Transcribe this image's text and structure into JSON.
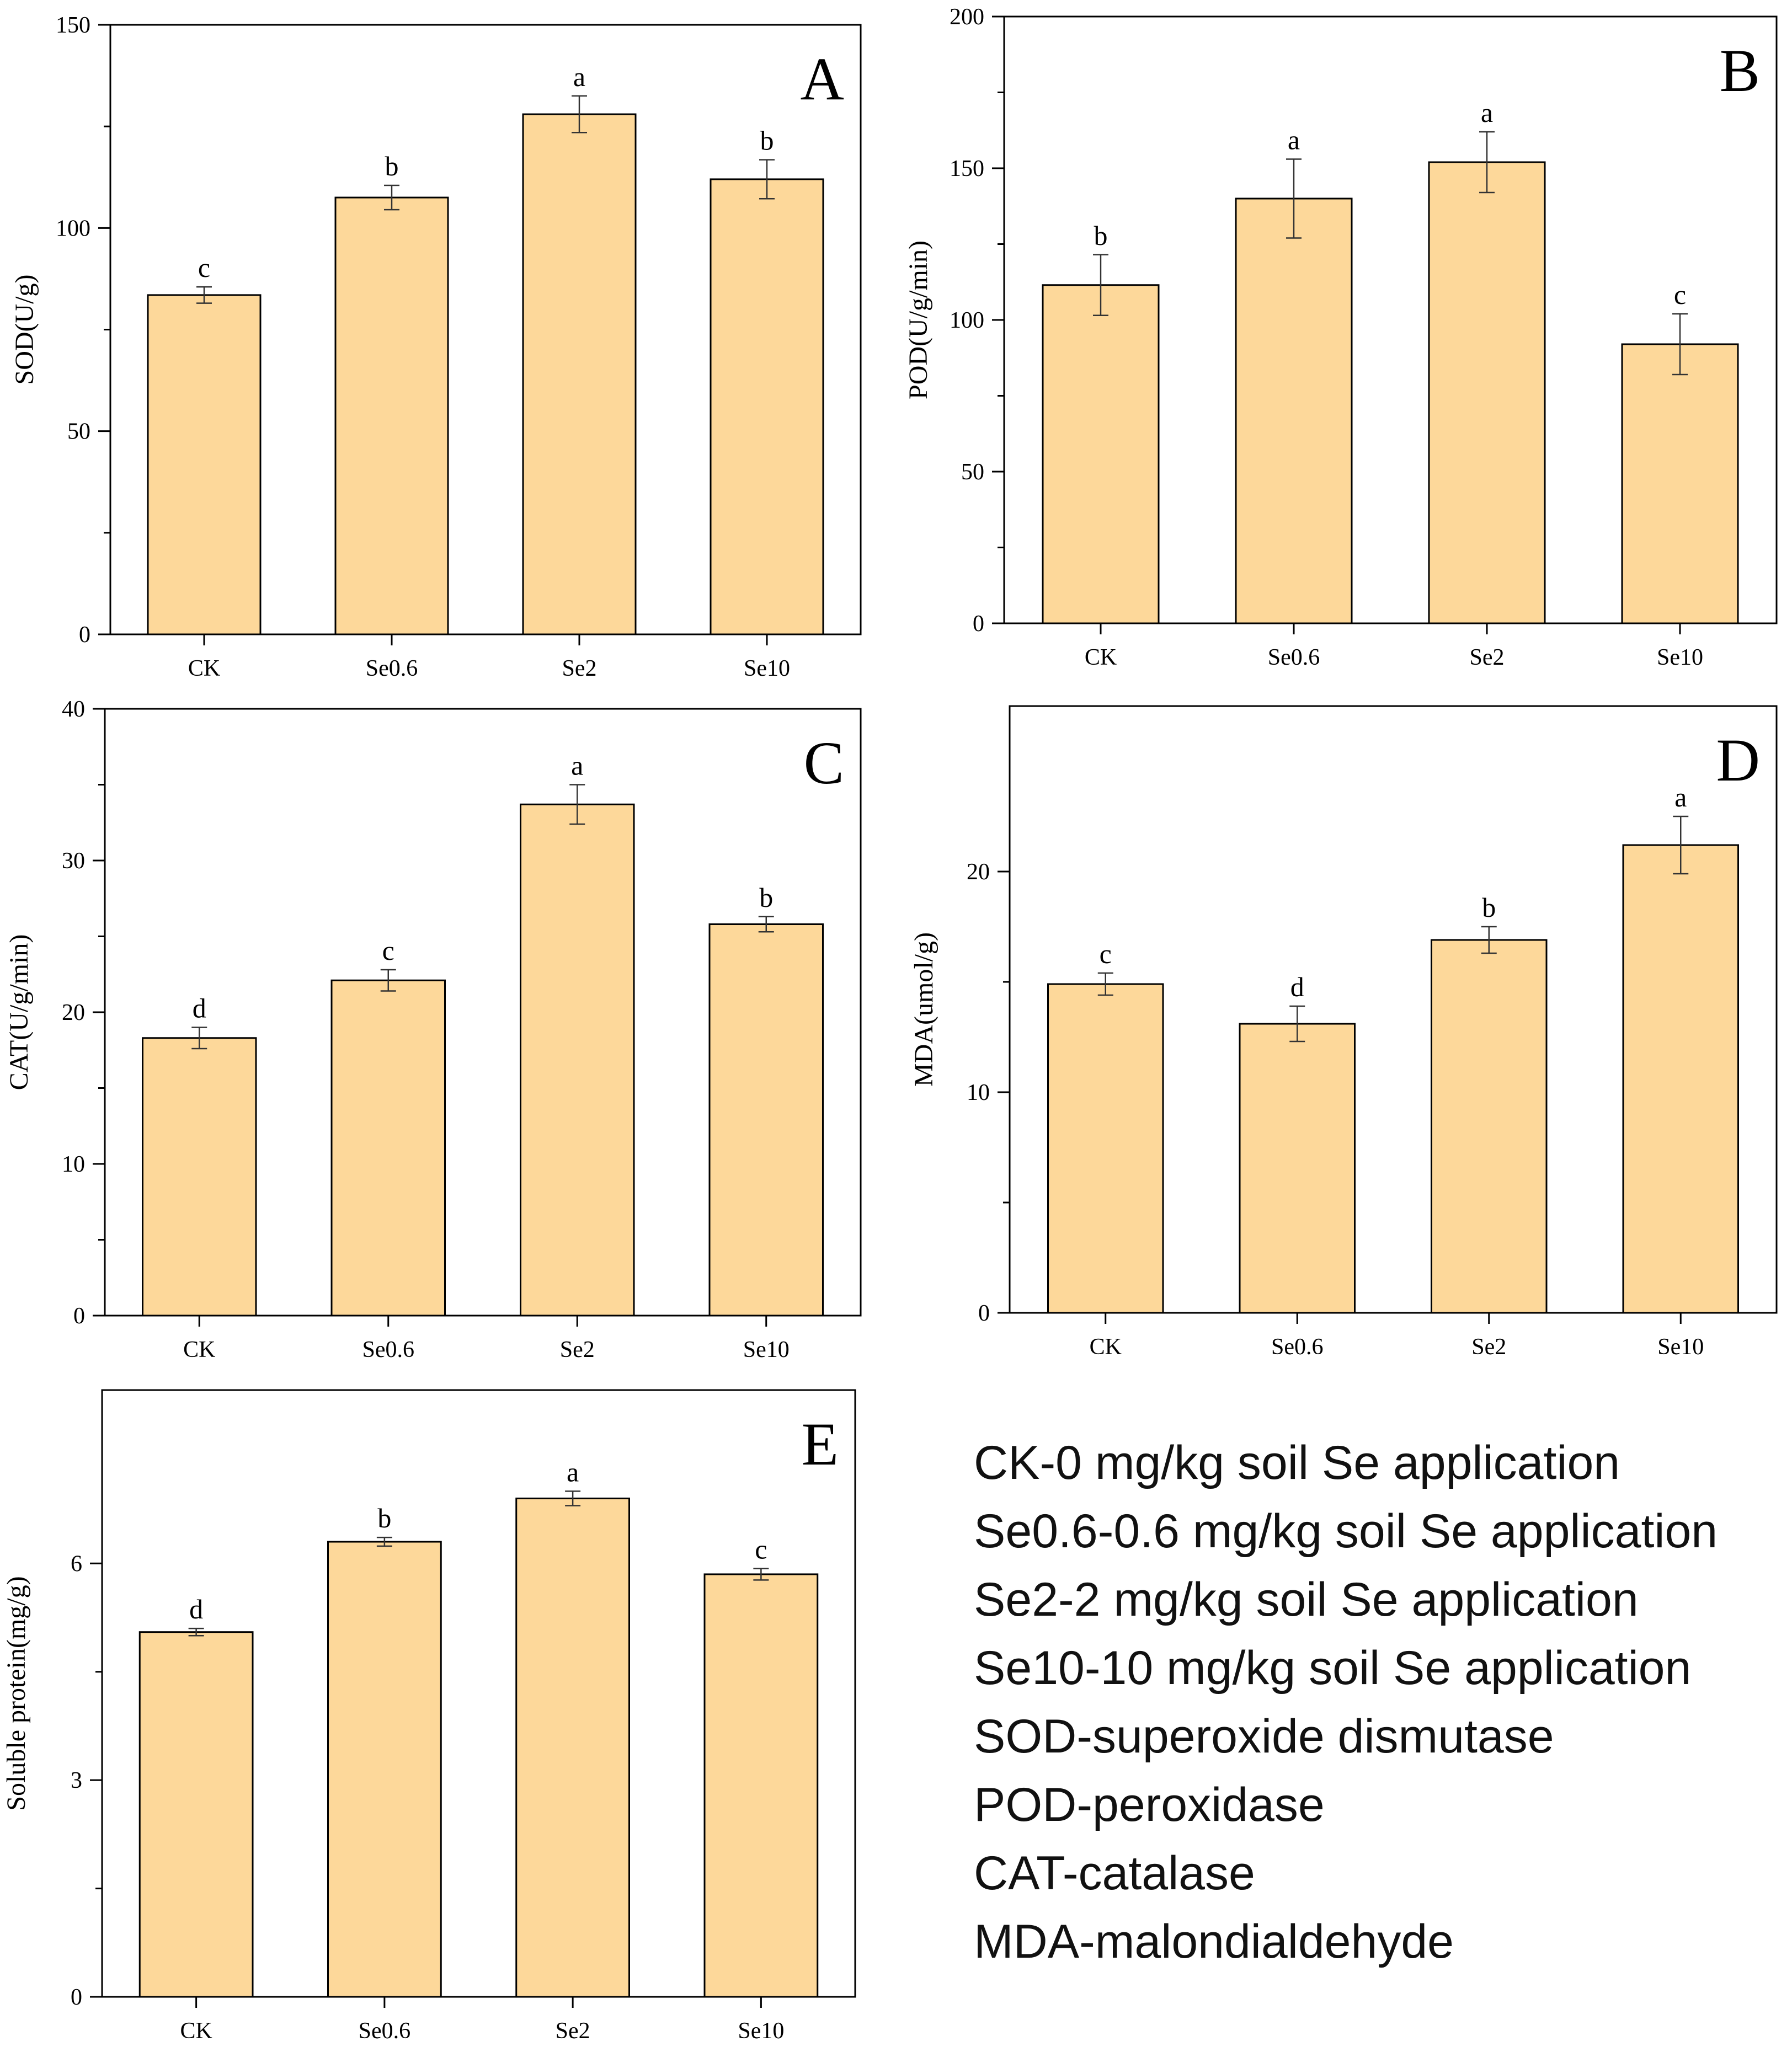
{
  "chart_data": [
    {
      "type": "bar",
      "panel": "A",
      "categories": [
        "CK",
        "Se0.6",
        "Se2",
        "Se10"
      ],
      "values": [
        83.5,
        107.5,
        128,
        112
      ],
      "errors": [
        2,
        3,
        4.5,
        4.8
      ],
      "letters": [
        "c",
        "b",
        "a",
        "b"
      ],
      "ylabel": "SOD(U/g)",
      "ylim": [
        0,
        150
      ],
      "yticks": [
        0,
        50,
        100,
        150
      ],
      "color": "#fdd89a"
    },
    {
      "type": "bar",
      "panel": "B",
      "categories": [
        "CK",
        "Se0.6",
        "Se2",
        "Se10"
      ],
      "values": [
        111.5,
        140,
        152,
        92
      ],
      "errors": [
        10,
        13,
        10,
        10
      ],
      "letters": [
        "b",
        "a",
        "a",
        "c"
      ],
      "ylabel": "POD(U/g/min)",
      "ylim": [
        0,
        200
      ],
      "yticks": [
        0,
        50,
        100,
        150,
        200
      ],
      "color": "#fdd89a"
    },
    {
      "type": "bar",
      "panel": "C",
      "categories": [
        "CK",
        "Se0.6",
        "Se2",
        "Se10"
      ],
      "values": [
        18.3,
        22.1,
        33.7,
        25.8
      ],
      "errors": [
        0.7,
        0.7,
        1.3,
        0.5
      ],
      "letters": [
        "d",
        "c",
        "a",
        "b"
      ],
      "ylabel": "CAT(U/g/min)",
      "ylim": [
        0,
        40
      ],
      "yticks": [
        0,
        10,
        20,
        30,
        40
      ],
      "color": "#fdd89a"
    },
    {
      "type": "bar",
      "panel": "D",
      "categories": [
        "CK",
        "Se0.6",
        "Se2",
        "Se10"
      ],
      "values": [
        14.9,
        13.1,
        16.9,
        21.2
      ],
      "errors": [
        0.5,
        0.8,
        0.6,
        1.3
      ],
      "letters": [
        "c",
        "d",
        "b",
        "a"
      ],
      "ylabel": "MDA(umol/g)",
      "ylim": [
        0,
        27.5
      ],
      "yticks": [
        0,
        10,
        20
      ],
      "color": "#fdd89a"
    },
    {
      "type": "bar",
      "panel": "E",
      "categories": [
        "CK",
        "Se0.6",
        "Se2",
        "Se10"
      ],
      "values": [
        5.05,
        6.3,
        6.9,
        5.85
      ],
      "errors": [
        0.05,
        0.06,
        0.1,
        0.08
      ],
      "letters": [
        "d",
        "b",
        "a",
        "c"
      ],
      "ylabel": "Soluble protein(mg/g)",
      "ylim": [
        0,
        8.4
      ],
      "yticks": [
        0,
        3,
        6
      ],
      "color": "#fdd89a"
    }
  ],
  "legend": {
    "lines": [
      "CK-0 mg/kg soil Se application",
      "Se0.6-0.6 mg/kg soil Se application",
      "Se2-2 mg/kg soil Se application",
      "Se10-10 mg/kg soil Se application",
      "SOD-superoxide dismutase",
      "POD-peroxidase",
      "CAT-catalase",
      "MDA-malondialdehyde"
    ]
  }
}
